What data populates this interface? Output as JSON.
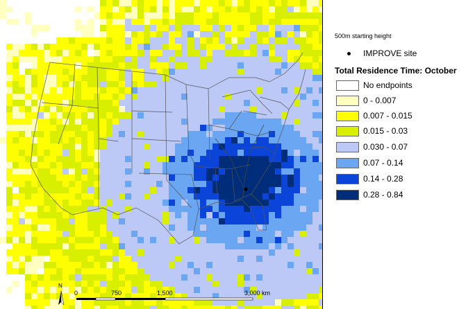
{
  "legend": {
    "starting_height": "500m starting height",
    "site_label": "IMPROVE site",
    "title": "Total Residence Time: October",
    "items": [
      {
        "label": "No endpoints",
        "color": "#ffffff"
      },
      {
        "label": "0 - 0.007",
        "color": "#ffffc0"
      },
      {
        "label": "0.007 - 0.015",
        "color": "#ffff00"
      },
      {
        "label": "0.015 - 0.03",
        "color": "#d8ef00"
      },
      {
        "label": "0.030 - 0.07",
        "color": "#bcc8f5"
      },
      {
        "label": "0.07 - 0.14",
        "color": "#6aa6f2"
      },
      {
        "label": "0.14 - 0.28",
        "color": "#0a44d8"
      },
      {
        "label": "0.28 - 0.84",
        "color": "#002d7a"
      }
    ]
  },
  "scale_bar": {
    "labels": [
      "0",
      "750",
      "1,500",
      "3,000 km"
    ]
  },
  "north_arrow": {
    "letter": "N"
  }
}
